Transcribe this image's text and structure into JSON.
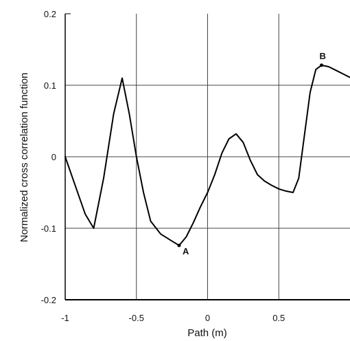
{
  "chart_data": {
    "type": "line",
    "title": "",
    "xlabel": "Path (m)",
    "ylabel": "Normalized cross correlation function",
    "xlim": [
      -1,
      1
    ],
    "ylim": [
      -0.2,
      0.2
    ],
    "grid": true,
    "x_ticks": [
      "-1",
      "-0.5",
      "0",
      "0.5"
    ],
    "y_ticks": [
      "0.2",
      "0.1",
      "0",
      "-0.1",
      "-0.2"
    ],
    "series": [
      {
        "x": [
          -1.0,
          -0.93,
          -0.86,
          -0.8,
          -0.73,
          -0.66,
          -0.6,
          -0.55,
          -0.5,
          -0.45,
          -0.4,
          -0.33,
          -0.25,
          -0.2,
          -0.15,
          -0.1,
          -0.05,
          0.0,
          0.05,
          0.1,
          0.15,
          0.2,
          0.25,
          0.3,
          0.35,
          0.4,
          0.45,
          0.5,
          0.55,
          0.6,
          0.64,
          0.68,
          0.72,
          0.76,
          0.8,
          0.85,
          0.9,
          0.95,
          1.0
        ],
        "y": [
          0.0,
          -0.04,
          -0.08,
          -0.1,
          -0.03,
          0.06,
          0.11,
          0.06,
          0.0,
          -0.05,
          -0.09,
          -0.108,
          -0.118,
          -0.124,
          -0.112,
          -0.092,
          -0.07,
          -0.05,
          -0.025,
          0.005,
          0.025,
          0.032,
          0.02,
          -0.005,
          -0.025,
          -0.034,
          -0.04,
          -0.045,
          -0.048,
          -0.05,
          -0.03,
          0.03,
          0.09,
          0.122,
          0.128,
          0.126,
          0.121,
          0.116,
          0.111
        ],
        "color": "#000000"
      }
    ],
    "annotations": [
      {
        "label": "A",
        "x": -0.2,
        "y": -0.124
      },
      {
        "label": "B",
        "x": 0.8,
        "y": 0.128
      }
    ]
  }
}
